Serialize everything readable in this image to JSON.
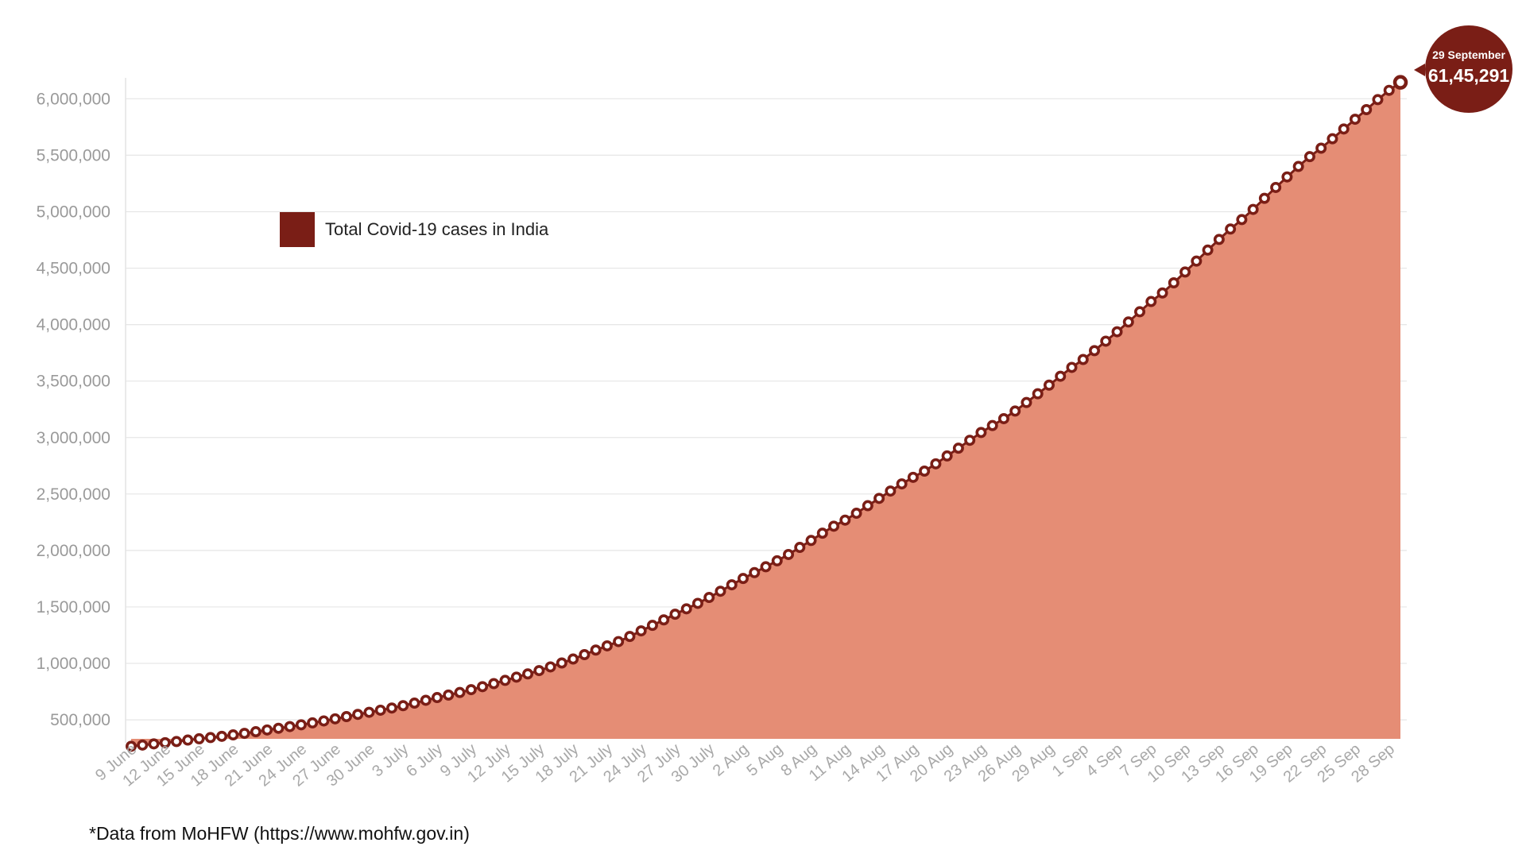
{
  "colors": {
    "area": "#e58d75",
    "line": "#7a1e16",
    "marker_fill": "#ffffff",
    "grid": "#e6e6e6",
    "tick_text": "#9a9a9a",
    "callout": "#7a1e16"
  },
  "legend": {
    "label": "Total Covid-19 cases in India"
  },
  "callout": {
    "date": "29 September",
    "value": "61,45,291"
  },
  "source_note": "*Data from MoHFW (https://www.mohfw.gov.in)",
  "chart_data": {
    "type": "area",
    "title": "",
    "xlabel": "",
    "ylabel": "",
    "grid": true,
    "legend_position": "top-left",
    "ylim": [
      200000,
      6200000
    ],
    "yticks": [
      500000,
      1000000,
      1500000,
      2000000,
      2500000,
      3000000,
      3500000,
      4000000,
      4500000,
      5000000,
      5500000,
      6000000
    ],
    "ytick_labels": [
      "500,000",
      "1,000,000",
      "1,500,000",
      "2,000,000",
      "2,500,000",
      "3,000,000",
      "3,500,000",
      "4,000,000",
      "4,500,000",
      "5,000,000",
      "5,500,000",
      "6,000,000"
    ],
    "x_start": "2020-06-09",
    "x_end": "2020-09-29",
    "xtick_labels": [
      "9 June",
      "12 June",
      "15 June",
      "18 June",
      "21 June",
      "24 June",
      "27 June",
      "30 June",
      "3 July",
      "6 July",
      "9 July",
      "12 July",
      "15 July",
      "18 July",
      "21 July",
      "24 July",
      "27 July",
      "30 July",
      "2 Aug",
      "5 Aug",
      "8 Aug",
      "11 Aug",
      "14 Aug",
      "17 Aug",
      "20 Aug",
      "23 Aug",
      "26 Aug",
      "29 Aug",
      "1 Sep",
      "4 Sep",
      "7 Sep",
      "10 Sep",
      "13 Sep",
      "16 Sep",
      "19 Sep",
      "22 Sep",
      "25 Sep",
      "28 Sep"
    ],
    "series": [
      {
        "name": "Total Covid-19 cases in India",
        "values": [
          266000,
          276600,
          287200,
          297500,
          308000,
          320900,
          332400,
          343100,
          354100,
          366900,
          380500,
          395000,
          410500,
          425300,
          440200,
          456200,
          473100,
          490400,
          508900,
          528800,
          548300,
          566800,
          585500,
          604600,
          625500,
          648300,
          673200,
          697400,
          719700,
          742400,
          767300,
          793800,
          820900,
          849500,
          878300,
          906800,
          936200,
          968900,
          1003800,
          1038700,
          1077600,
          1118000,
          1155200,
          1193100,
          1238600,
          1287900,
          1336800,
          1385500,
          1435500,
          1483200,
          1531700,
          1583800,
          1638900,
          1695900,
          1751900,
          1803700,
          1855700,
          1908300,
          1964500,
          2027000,
          2088600,
          2153000,
          2215100,
          2268700,
          2329600,
          2396600,
          2461200,
          2526200,
          2589700,
          2647700,
          2702700,
          2767300,
          2836900,
          2905800,
          2975700,
          3044900,
          3106300,
          3167300,
          3234500,
          3310200,
          3387500,
          3463900,
          3542700,
          3621200,
          3691200,
          3769500,
          3853400,
          3936700,
          4023200,
          4113800,
          4204600,
          4280400,
          4370100,
          4465900,
          4562400,
          4659900,
          4754300,
          4846400,
          4930200,
          5020300,
          5118300,
          5214700,
          5308000,
          5400600,
          5487600,
          5562700,
          5646000,
          5732500,
          5818600,
          5903900,
          5992500,
          6074700,
          6145291
        ]
      }
    ]
  }
}
